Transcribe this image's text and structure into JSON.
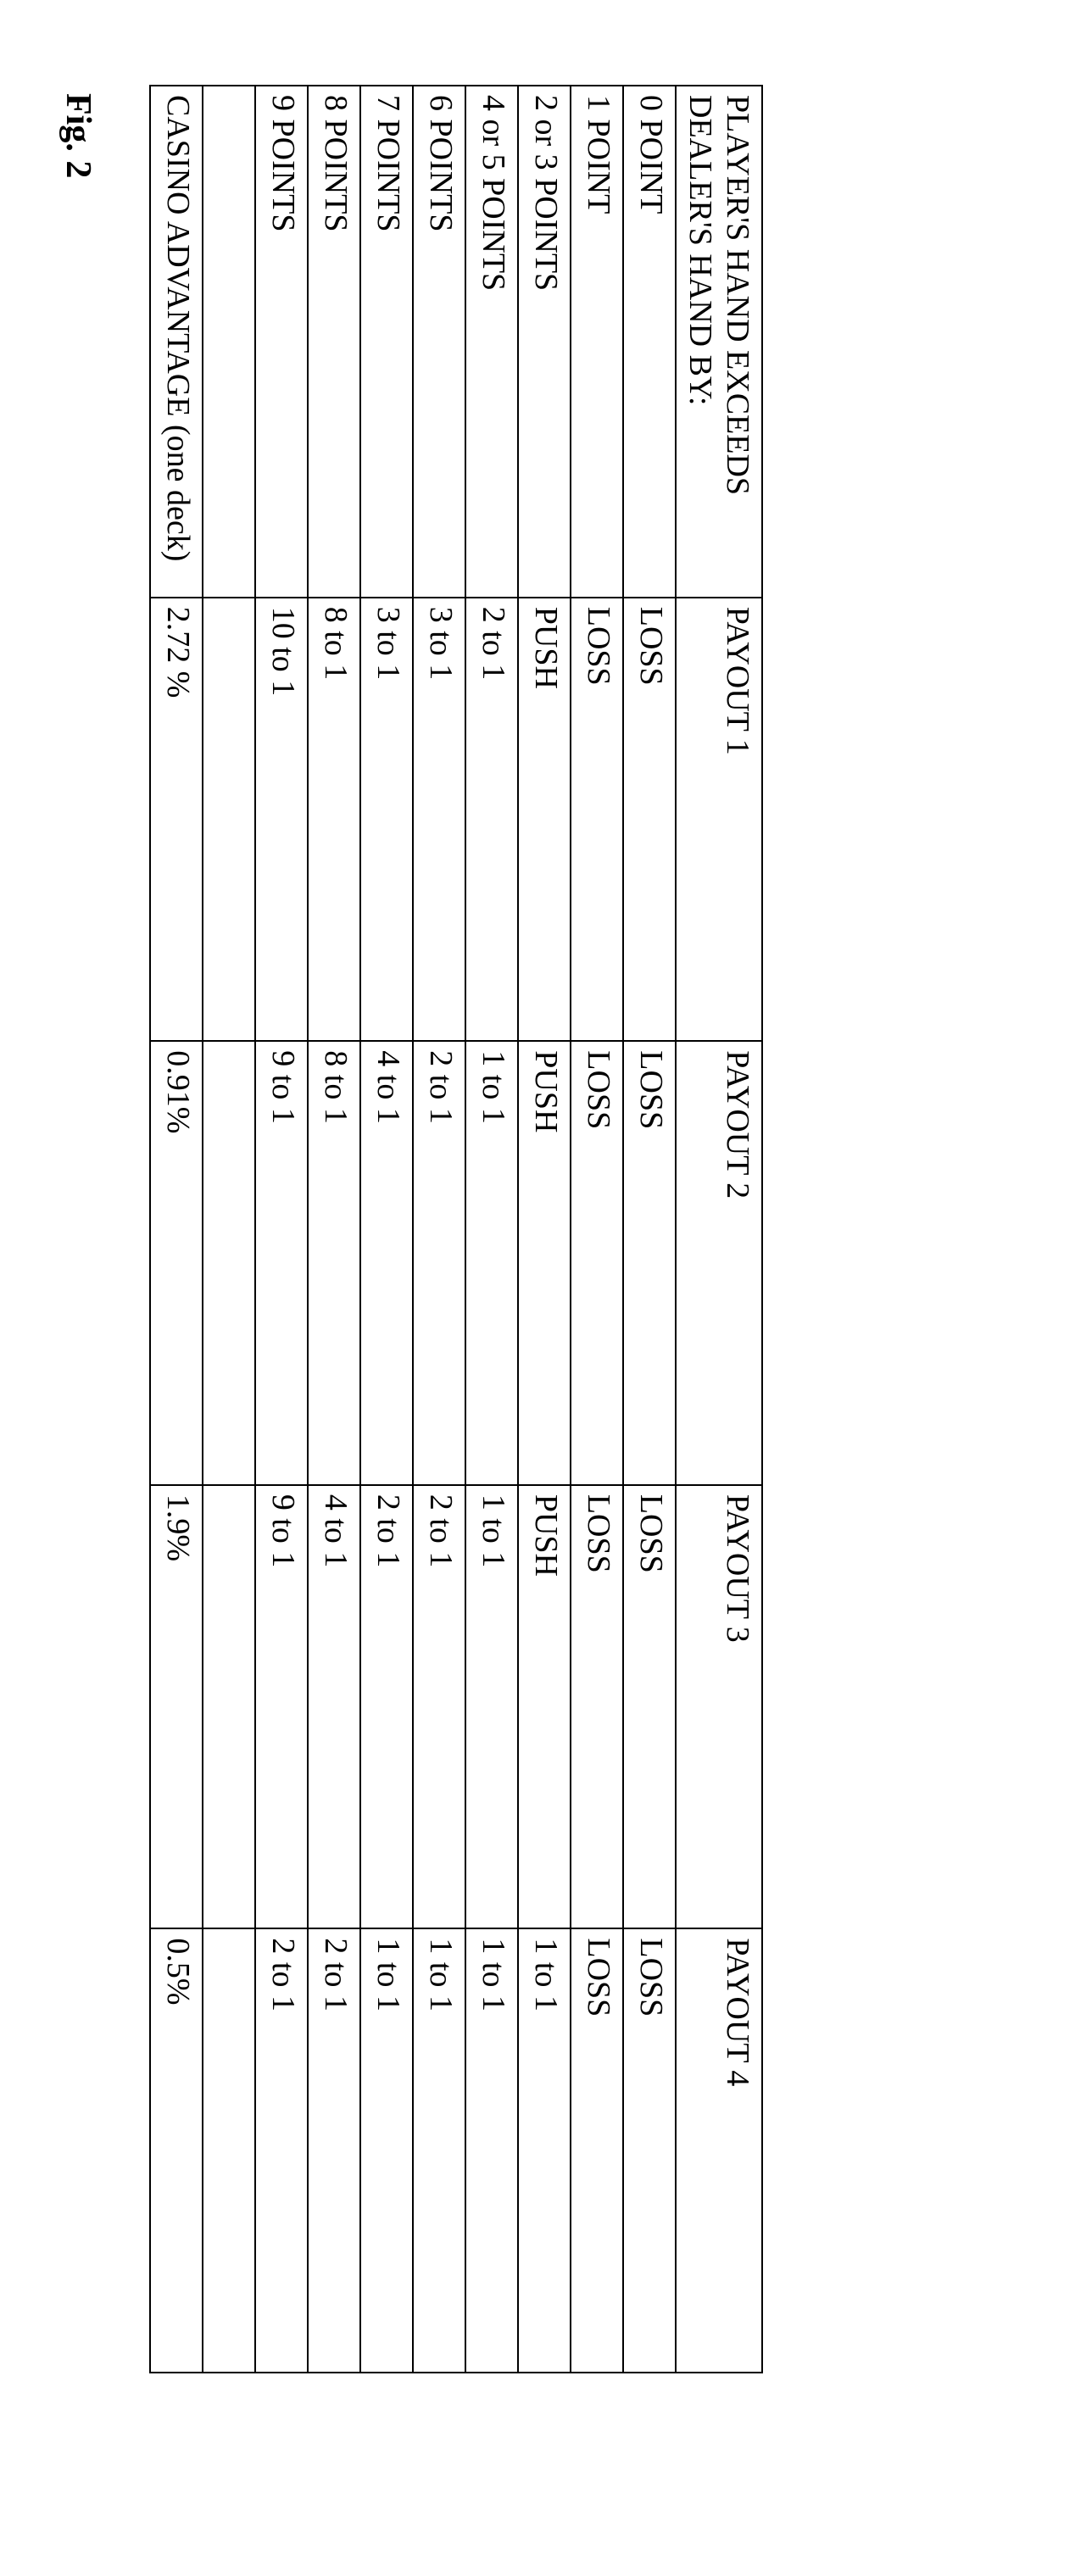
{
  "table": {
    "headers": {
      "first": "PLAYER'S HAND EXCEEDS DEALER'S HAND BY:",
      "p1": "PAYOUT 1",
      "p2": "PAYOUT 2",
      "p3": "PAYOUT 3",
      "p4": "PAYOUT 4"
    },
    "rows": [
      {
        "label": "0 POINT",
        "p1": "LOSS",
        "p2": "LOSS",
        "p3": "LOSS",
        "p4": "LOSS"
      },
      {
        "label": "1 POINT",
        "p1": "LOSS",
        "p2": "LOSS",
        "p3": "LOSS",
        "p4": "LOSS"
      },
      {
        "label": "2 or 3 POINTS",
        "p1": "PUSH",
        "p2": "PUSH",
        "p3": "PUSH",
        "p4": "1 to 1"
      },
      {
        "label": "4 or 5 POINTS",
        "p1": "2 to 1",
        "p2": "1 to 1",
        "p3": "1 to 1",
        "p4": "1 to 1"
      },
      {
        "label": "6 POINTS",
        "p1": "3 to 1",
        "p2": "2 to 1",
        "p3": "2 to 1",
        "p4": "1 to 1"
      },
      {
        "label": "7 POINTS",
        "p1": "3 to 1",
        "p2": "4 to 1",
        "p3": "2 to 1",
        "p4": "1 to 1"
      },
      {
        "label": "8 POINTS",
        "p1": "8 to 1",
        "p2": "8 to 1",
        "p3": "4 to 1",
        "p4": "2 to 1"
      },
      {
        "label": "9 POINTS",
        "p1": "10 to 1",
        "p2": "9 to 1",
        "p3": "9 to 1",
        "p4": "2 to 1"
      }
    ],
    "footer": {
      "label": "CASINO ADVANTAGE (one deck)",
      "p1": "2.72 %",
      "p2": "0.91%",
      "p3": "1.9%",
      "p4": "0.5%"
    }
  },
  "figure_label": "Fig. 2"
}
